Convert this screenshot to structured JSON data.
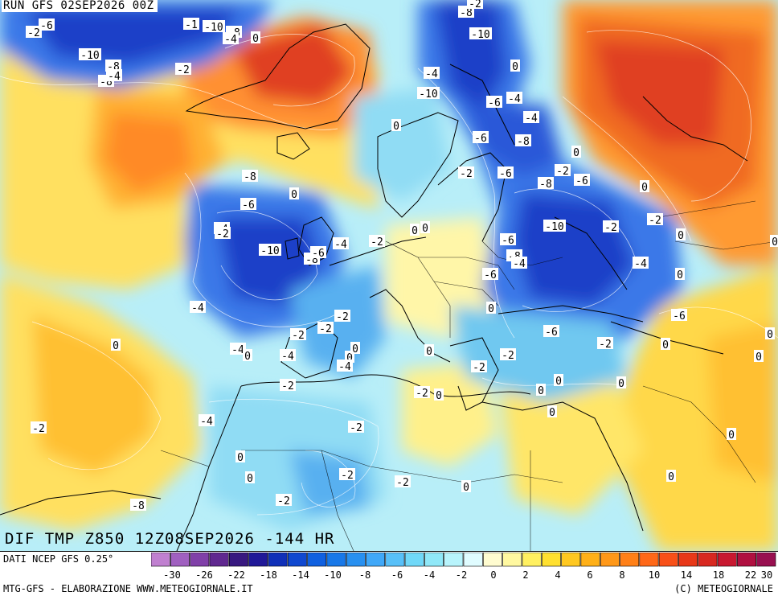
{
  "header": {
    "run_label": "RUN GFS 02SEP2026 00Z"
  },
  "field": {
    "title": "DIF TMP Z850 12Z08SEP2026 -144 HR"
  },
  "footer": {
    "data_source": "DATI NCEP GFS 0.25°",
    "credit": "MTG-GFS - ELABORAZIONE WWW.METEOGIORNALE.IT",
    "copyright": "(C) METEOGIORNALE"
  },
  "scale": {
    "colors": [
      "#c080d0",
      "#a060c0",
      "#8040a8",
      "#602890",
      "#381880",
      "#201898",
      "#1030b8",
      "#1048d0",
      "#1060e0",
      "#1878e8",
      "#2890f0",
      "#40a8f8",
      "#58c0f8",
      "#70d8f8",
      "#90e8f8",
      "#b8f4fc",
      "#e0fcff",
      "#fffcd0",
      "#fff8a0",
      "#fff060",
      "#ffe030",
      "#ffc820",
      "#ffb018",
      "#ff9818",
      "#ff8018",
      "#ff6818",
      "#f85018",
      "#e83818",
      "#d82820",
      "#c81830",
      "#b01040",
      "#981050"
    ],
    "ticks": [
      "-30",
      "-26",
      "-22",
      "-18",
      "-14",
      "-10",
      "-8",
      "-6",
      "-4",
      "-2",
      "0",
      "2",
      "4",
      "6",
      "8",
      "10",
      "14",
      "18",
      "22",
      "30"
    ]
  },
  "map": {
    "contour_labels": [
      "-6",
      "-2",
      "-10",
      "-8",
      "-2",
      "-1",
      "-10",
      "-8",
      "-4",
      "0",
      "-8",
      "-4",
      "-10",
      "-8",
      "-2",
      "0",
      "-4",
      "-10",
      "-6",
      "-4",
      "0",
      "-8",
      "-6",
      "-4",
      "-6",
      "-8",
      "0",
      "-2",
      "-6",
      "0",
      "-2",
      "-8",
      "-6",
      "-4",
      "-2",
      "-10",
      "-8",
      "-6",
      "-4",
      "-6",
      "-8",
      "0",
      "0",
      "-10",
      "0",
      "-2",
      "-6",
      "-4",
      "-2",
      "0",
      "0",
      "-2",
      "0",
      "-4",
      "-6",
      "-4",
      "-2",
      "0",
      "-2",
      "0",
      "-6",
      "-2",
      "-4",
      "0",
      "0",
      "-4",
      "0",
      "0",
      "-4",
      "-2",
      "-2",
      "-2",
      "0",
      "0",
      "0",
      "0",
      "0",
      "0",
      "-2",
      "-2",
      "0",
      "0",
      "-4",
      "-2",
      "-2",
      "0",
      "0",
      "-2",
      "0",
      "-2",
      "0",
      "0",
      "-8",
      "-2"
    ],
    "colors": {
      "deep_cold": "#1e40c8",
      "cold": "#3a78e8",
      "cool": "#70c8f0",
      "neutral": "#e8fcff",
      "warm": "#fff278",
      "warmer": "#ffc23c",
      "hot": "#f07820",
      "very_hot": "#d82828",
      "coastline": "#000000",
      "contour": "#ffffff"
    }
  }
}
